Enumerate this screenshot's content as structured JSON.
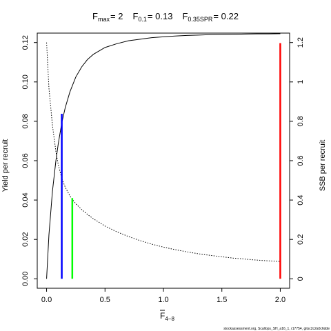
{
  "chart_data": {
    "type": "line",
    "title_parts": [
      {
        "base": "F",
        "sub": "max",
        "value": "= 2"
      },
      {
        "base": "F",
        "sub": "0.1",
        "value": "= 0.13"
      },
      {
        "base": "F",
        "sub": "0.35SPR",
        "value": "= 0.22"
      }
    ],
    "xlabel": {
      "base": "F",
      "sub": "4−8"
    },
    "ylabel_left": "Yield per recruit",
    "ylabel_right": "SSB per recruit",
    "xlim": [
      -0.08,
      2.08
    ],
    "ylim_left": [
      -0.0048,
      0.1248
    ],
    "ylim_right": [
      -0.048,
      1.248
    ],
    "x_ticks": [
      {
        "v": 0,
        "label": "0.0"
      },
      {
        "v": 0.5,
        "label": "0.5"
      },
      {
        "v": 1,
        "label": "1.0"
      },
      {
        "v": 1.5,
        "label": "1.5"
      },
      {
        "v": 2,
        "label": "2.0"
      }
    ],
    "y_ticks_left": [
      {
        "v": 0,
        "label": "0.00"
      },
      {
        "v": 0.02,
        "label": "0.02"
      },
      {
        "v": 0.04,
        "label": "0.04"
      },
      {
        "v": 0.06,
        "label": "0.06"
      },
      {
        "v": 0.08,
        "label": "0.08"
      },
      {
        "v": 0.1,
        "label": "0.10"
      },
      {
        "v": 0.12,
        "label": "0.12"
      }
    ],
    "y_ticks_right": [
      {
        "v": 0,
        "label": "0"
      },
      {
        "v": 0.2,
        "label": "0.2"
      },
      {
        "v": 0.4,
        "label": "0.4"
      },
      {
        "v": 0.6,
        "label": "0.6"
      },
      {
        "v": 0.8,
        "label": "0.8"
      },
      {
        "v": 1,
        "label": "1"
      },
      {
        "v": 1.2,
        "label": "1.2"
      }
    ],
    "series": [
      {
        "axis": "left",
        "style": "solid",
        "color": "#000000",
        "x": [
          0,
          0.02,
          0.05,
          0.08,
          0.1,
          0.13,
          0.16,
          0.2,
          0.25,
          0.3,
          0.35,
          0.4,
          0.5,
          0.6,
          0.7,
          0.8,
          0.9,
          1.0,
          1.1,
          1.2,
          1.3,
          1.4,
          1.5,
          1.6,
          1.7,
          1.8,
          1.9,
          2.0
        ],
        "y": [
          0,
          0.0222,
          0.0444,
          0.0601,
          0.0686,
          0.0792,
          0.087,
          0.095,
          0.1025,
          0.1076,
          0.1114,
          0.114,
          0.1175,
          0.1194,
          0.1209,
          0.1217,
          0.1225,
          0.1229,
          0.1233,
          0.1236,
          0.1238,
          0.124,
          0.1241,
          0.1242,
          0.1243,
          0.1244,
          0.1244,
          0.1245
        ]
      },
      {
        "axis": "right",
        "style": "dotted",
        "color": "#000000",
        "x": [
          0,
          0.02,
          0.05,
          0.08,
          0.1,
          0.13,
          0.16,
          0.2,
          0.25,
          0.3,
          0.35,
          0.4,
          0.5,
          0.6,
          0.7,
          0.8,
          0.9,
          1.0,
          1.1,
          1.2,
          1.3,
          1.4,
          1.5,
          1.6,
          1.7,
          1.8,
          1.9,
          2.0
        ],
        "y": [
          1.2,
          0.97,
          0.78,
          0.645,
          0.58,
          0.51,
          0.465,
          0.42,
          0.381,
          0.352,
          0.327,
          0.305,
          0.268,
          0.239,
          0.215,
          0.194,
          0.176,
          0.161,
          0.148,
          0.137,
          0.127,
          0.119,
          0.112,
          0.105,
          0.1,
          0.095,
          0.091,
          0.088
        ]
      }
    ],
    "reference_lines": [
      {
        "name": "F0.1",
        "x": 0.13,
        "y": 0.0838,
        "color": "#0000ff"
      },
      {
        "name": "F0.35SPR",
        "x": 0.22,
        "y": 0.041,
        "color": "#00ff00"
      },
      {
        "name": "Fmax",
        "x": 2.0,
        "y": 0.1197,
        "color": "#ff0000"
      }
    ],
    "grid": false,
    "footnote": "stockassessment.org, Scallops_SH_a16_1, r17754, gitsc2c2a0c6dde"
  }
}
